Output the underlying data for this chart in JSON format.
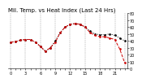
{
  "title": "Mil. Temp. vs Heat Index (Last 24 Hrs)",
  "background_color": "#ffffff",
  "plot_bg_color": "#ffffff",
  "grid_color": "#888888",
  "hours": [
    0,
    1,
    2,
    3,
    4,
    5,
    6,
    7,
    8,
    9,
    10,
    11,
    12,
    13,
    14,
    15,
    16,
    17,
    18,
    19,
    20,
    21,
    22,
    23
  ],
  "temp": [
    38,
    39,
    41,
    42,
    42,
    38,
    32,
    25,
    30,
    40,
    52,
    60,
    64,
    65,
    64,
    60,
    54,
    50,
    49,
    49,
    50,
    48,
    44,
    40
  ],
  "heat_index": [
    38,
    39,
    41,
    42,
    42,
    38,
    32,
    25,
    30,
    38,
    52,
    60,
    64,
    65,
    64,
    60,
    52,
    48,
    46,
    46,
    44,
    42,
    28,
    8
  ],
  "temp_color": "#000000",
  "heat_color": "#cc0000",
  "ylim": [
    0,
    80
  ],
  "ytick_labels": [
    "0",
    "10",
    "20",
    "30",
    "40",
    "50",
    "60",
    "70",
    "80"
  ],
  "ytick_values": [
    0,
    10,
    20,
    30,
    40,
    50,
    60,
    70,
    80
  ],
  "grid_x_positions": [
    0,
    3,
    6,
    9,
    12,
    15,
    18,
    21,
    23
  ],
  "xtick_positions": [
    0,
    1,
    2,
    3,
    4,
    5,
    6,
    7,
    8,
    9,
    10,
    11,
    12,
    13,
    14,
    15,
    16,
    17,
    18,
    19,
    20,
    21,
    22,
    23
  ],
  "xtick_labels": [
    "0",
    "",
    "",
    "3",
    "",
    "",
    "6",
    "",
    "",
    "9",
    "",
    "",
    "12",
    "",
    "",
    "15",
    "",
    "",
    "18",
    "",
    "",
    "21",
    "",
    ""
  ],
  "title_fontsize": 5.0,
  "tick_fontsize": 3.5,
  "line_width": 0.7,
  "marker_size": 1.8
}
